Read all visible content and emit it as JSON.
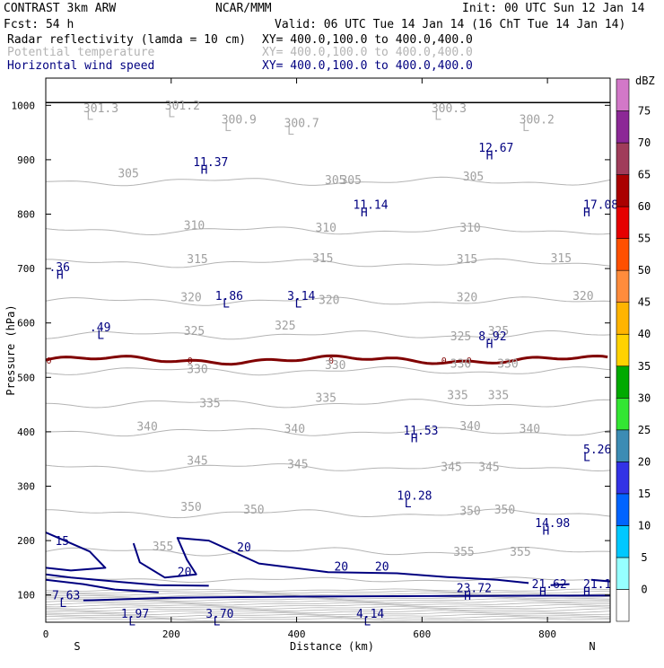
{
  "header": {
    "model": "CONTRAST  3km ARW",
    "center": "NCAR/MMM",
    "init": "Init: 00 UTC Sun 12 Jan 14",
    "fcst": "Fcst:   54 h",
    "valid": "Valid: 06 UTC Tue 14 Jan 14 (16 ChT Tue 14 Jan 14)"
  },
  "fields": [
    {
      "name": "Radar reflectivity (lamda = 10 cm)",
      "xy": "XY= 400.0,100.0 to 400.0,400.0",
      "color": "#000000"
    },
    {
      "name": "Potential temperature",
      "xy": "XY= 400.0,100.0 to 400.0,400.0",
      "color": "#b4b4b4"
    },
    {
      "name": "Horizontal wind speed",
      "xy": "XY= 400.0,100.0 to 400.0,400.0",
      "color": "#000080"
    }
  ],
  "chart_data": {
    "type": "cross-section",
    "xlabel": "Distance (km)",
    "ylabel": "Pressure (hPa)",
    "x_ticks": [
      0,
      200,
      400,
      600,
      800
    ],
    "y_ticks": [
      100,
      200,
      300,
      400,
      500,
      600,
      700,
      800,
      900,
      1000
    ],
    "xlim": [
      0,
      900
    ],
    "ylim": [
      1050,
      50
    ],
    "x_end_labels": {
      "left": "S",
      "right": "N"
    },
    "colorbar": {
      "unit": "dBZ",
      "levels": [
        0,
        5,
        10,
        15,
        20,
        25,
        30,
        35,
        40,
        45,
        50,
        55,
        60,
        65,
        70,
        75
      ],
      "colors": [
        "#ffffff",
        "#96ffff",
        "#00c8ff",
        "#0064ff",
        "#3232e6",
        "#3c8cb4",
        "#33e633",
        "#00aa00",
        "#ffd200",
        "#ffb400",
        "#ff8c3c",
        "#ff5000",
        "#e60000",
        "#aa0000",
        "#a03c5a",
        "#8c2896",
        "#d278c8"
      ]
    },
    "theta_isotherms": [
      {
        "value": 355,
        "labels": [
          {
            "text": "355",
            "x": 170,
            "p": 182
          },
          {
            "text": "355",
            "x": 650,
            "p": 172
          },
          {
            "text": "355",
            "x": 740,
            "p": 172
          }
        ]
      },
      {
        "value": 350,
        "labels": [
          {
            "text": "350",
            "x": 215,
            "p": 255
          },
          {
            "text": "350",
            "x": 315,
            "p": 250
          },
          {
            "text": "350",
            "x": 660,
            "p": 247
          },
          {
            "text": "350",
            "x": 715,
            "p": 250
          }
        ]
      },
      {
        "value": 345,
        "labels": [
          {
            "text": "345",
            "x": 225,
            "p": 340
          },
          {
            "text": "345",
            "x": 385,
            "p": 333
          },
          {
            "text": "345",
            "x": 630,
            "p": 328
          },
          {
            "text": "345",
            "x": 690,
            "p": 328
          }
        ]
      },
      {
        "value": 340,
        "labels": [
          {
            "text": "340",
            "x": 145,
            "p": 402
          },
          {
            "text": "340",
            "x": 380,
            "p": 398
          },
          {
            "text": "340",
            "x": 660,
            "p": 403
          },
          {
            "text": "340",
            "x": 755,
            "p": 398
          }
        ]
      },
      {
        "value": 335,
        "labels": [
          {
            "text": "335",
            "x": 245,
            "p": 445
          },
          {
            "text": "335",
            "x": 430,
            "p": 455
          },
          {
            "text": "335",
            "x": 640,
            "p": 460
          },
          {
            "text": "335",
            "x": 705,
            "p": 460
          }
        ]
      },
      {
        "value": 330,
        "labels": [
          {
            "text": "330",
            "x": 225,
            "p": 508
          },
          {
            "text": "330",
            "x": 445,
            "p": 515
          },
          {
            "text": "330",
            "x": 645,
            "p": 518
          },
          {
            "text": "330",
            "x": 720,
            "p": 518
          }
        ]
      },
      {
        "value": 325,
        "labels": [
          {
            "text": "325",
            "x": 220,
            "p": 578
          },
          {
            "text": "325",
            "x": 365,
            "p": 588
          },
          {
            "text": "325",
            "x": 645,
            "p": 568
          },
          {
            "text": "325",
            "x": 705,
            "p": 578
          }
        ]
      },
      {
        "value": 320,
        "labels": [
          {
            "text": "320",
            "x": 215,
            "p": 640
          },
          {
            "text": "320",
            "x": 435,
            "p": 635
          },
          {
            "text": "320",
            "x": 655,
            "p": 640
          },
          {
            "text": "320",
            "x": 840,
            "p": 642
          }
        ]
      },
      {
        "value": 315,
        "labels": [
          {
            "text": "315",
            "x": 225,
            "p": 710
          },
          {
            "text": "315",
            "x": 425,
            "p": 712
          },
          {
            "text": "315",
            "x": 655,
            "p": 710
          },
          {
            "text": "315",
            "x": 805,
            "p": 712
          }
        ]
      },
      {
        "value": 310,
        "labels": [
          {
            "text": "310",
            "x": 220,
            "p": 772
          },
          {
            "text": "310",
            "x": 430,
            "p": 768
          },
          {
            "text": "310",
            "x": 660,
            "p": 768
          }
        ]
      },
      {
        "value": 305,
        "labels": [
          {
            "text": "305",
            "x": 115,
            "p": 868
          },
          {
            "text": "305",
            "x": 445,
            "p": 855
          },
          {
            "text": "305",
            "x": 470,
            "p": 855
          },
          {
            "text": "305",
            "x": 665,
            "p": 862
          }
        ]
      }
    ],
    "theta_extrema": [
      {
        "type": "L",
        "value": "301.3",
        "x": 65,
        "p": 985
      },
      {
        "type": "L",
        "value": "301.2",
        "x": 195,
        "p": 990
      },
      {
        "type": "L",
        "value": "300.9",
        "x": 285,
        "p": 965
      },
      {
        "type": "L",
        "value": "300.7",
        "x": 385,
        "p": 958
      },
      {
        "type": "L",
        "value": "300.3",
        "x": 620,
        "p": 985
      },
      {
        "type": "L",
        "value": "300.2",
        "x": 760,
        "p": 965
      }
    ],
    "wind_contours": [
      {
        "value": 20,
        "labels": [
          {
            "text": "20",
            "x": 210,
            "p": 135
          },
          {
            "text": "20",
            "x": 305,
            "p": 180
          },
          {
            "text": "20",
            "x": 460,
            "p": 145
          },
          {
            "text": "20",
            "x": 525,
            "p": 145
          }
        ]
      },
      {
        "value": 15,
        "labels": [
          {
            "text": "15",
            "x": 15,
            "p": 192
          }
        ]
      }
    ],
    "wind_extrema": [
      {
        "type": "L",
        "value": "1.97",
        "x": 120,
        "p": 58
      },
      {
        "type": "L",
        "value": "3.70",
        "x": 255,
        "p": 58
      },
      {
        "type": "L",
        "value": "4.14",
        "x": 495,
        "p": 58
      },
      {
        "type": "L",
        "value": "7.63",
        "x": 10,
        "p": 92
      },
      {
        "type": "H",
        "value": "23.72",
        "x": 655,
        "p": 105
      },
      {
        "type": "H",
        "value": "21.62",
        "x": 775,
        "p": 113
      },
      {
        "type": "H",
        "value": "21.1",
        "x": 860,
        "p": 113
      },
      {
        "type": "H",
        "value": "14.98",
        "x": 780,
        "p": 225
      },
      {
        "type": "L",
        "value": "10.28",
        "x": 560,
        "p": 275
      },
      {
        "type": "L",
        "value": "5.26",
        "x": 870,
        "p": 360
      },
      {
        "type": "H",
        "value": "11.53",
        "x": 570,
        "p": 395
      },
      {
        "type": "H",
        "value": "8.92",
        "x": 690,
        "p": 568
      },
      {
        "type": "L",
        "value": ".49",
        "x": 70,
        "p": 585
      },
      {
        "type": "L",
        "value": "1.86",
        "x": 270,
        "p": 642
      },
      {
        "type": "L",
        "value": "3.14",
        "x": 385,
        "p": 642
      },
      {
        "type": "H",
        "value": ".36",
        "x": 5,
        "p": 695
      },
      {
        "type": "H",
        "value": "11.14",
        "x": 490,
        "p": 810
      },
      {
        "type": "H",
        "value": "17.08",
        "x": 860,
        "p": 810
      },
      {
        "type": "H",
        "value": "11.37",
        "x": 235,
        "p": 888
      },
      {
        "type": "H",
        "value": "12.67",
        "x": 690,
        "p": 915
      }
    ],
    "zero_isotherm": {
      "value": 0,
      "label": "0",
      "p": 532
    },
    "ground_pressure": 1005
  }
}
